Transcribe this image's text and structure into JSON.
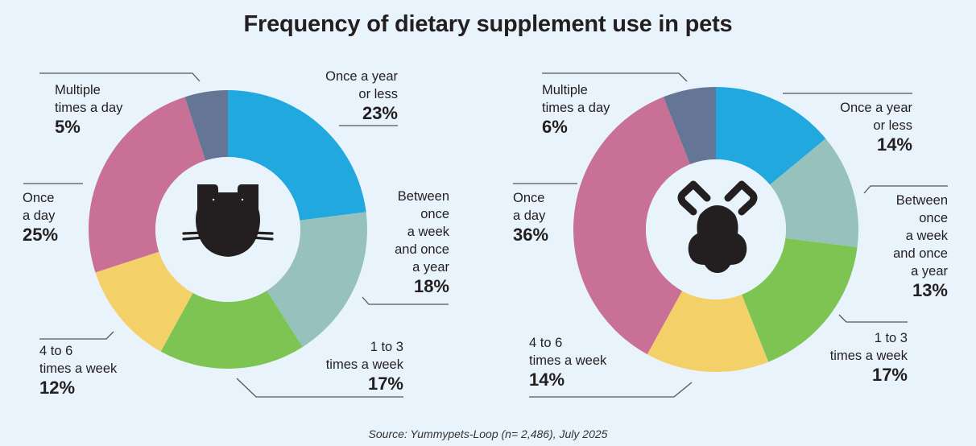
{
  "title": "Frequency of dietary supplement use in pets",
  "source": "Source: Yummypets-Loop (n= 2,486), July 2025",
  "colors": {
    "once_a_year_or_less": "#20a8df",
    "between_week_and_year": "#97c1bc",
    "one_to_three_week": "#7ec452",
    "four_to_six_week": "#f4d068",
    "once_a_day": "#c87096",
    "multiple_a_day": "#647596",
    "background": "#e9f3fb",
    "icon": "#231f20"
  },
  "chart_data": [
    {
      "type": "pie",
      "variant": "donut",
      "pet": "cat",
      "center_icon": "cat-icon",
      "categories": [
        "Once a year or less",
        "Between once a week and once a year",
        "1 to 3 times a week",
        "4 to 6 times a week",
        "Once a day",
        "Multiple times a day"
      ],
      "values": [
        23,
        18,
        17,
        12,
        25,
        5
      ],
      "unit": "%",
      "labels": [
        {
          "lines": [
            "Once a year",
            "or less"
          ],
          "pct": "23%"
        },
        {
          "lines": [
            "Between",
            "once",
            "a week",
            "and once",
            "a year"
          ],
          "pct": "18%"
        },
        {
          "lines": [
            "1 to 3",
            "times a week"
          ],
          "pct": "17%"
        },
        {
          "lines": [
            "4 to 6",
            "times a week"
          ],
          "pct": "12%"
        },
        {
          "lines": [
            "Once",
            "a day"
          ],
          "pct": "25%"
        },
        {
          "lines": [
            "Multiple",
            "times a day"
          ],
          "pct": "5%"
        }
      ]
    },
    {
      "type": "pie",
      "variant": "donut",
      "pet": "dog",
      "center_icon": "dog-icon",
      "categories": [
        "Once a year or less",
        "Between once a week and once a year",
        "1 to 3 times a week",
        "4 to 6 times a week",
        "Once a day",
        "Multiple times a day"
      ],
      "values": [
        14,
        13,
        17,
        14,
        36,
        6
      ],
      "unit": "%",
      "labels": [
        {
          "lines": [
            "Once a year",
            "or less"
          ],
          "pct": "14%"
        },
        {
          "lines": [
            "Between",
            "once",
            "a week",
            "and once",
            "a year"
          ],
          "pct": "13%"
        },
        {
          "lines": [
            "1 to 3",
            "times a week"
          ],
          "pct": "17%"
        },
        {
          "lines": [
            "4 to 6",
            "times a week"
          ],
          "pct": "14%"
        },
        {
          "lines": [
            "Once",
            "a day"
          ],
          "pct": "36%"
        },
        {
          "lines": [
            "Multiple",
            "times a day"
          ],
          "pct": "6%"
        }
      ]
    }
  ]
}
